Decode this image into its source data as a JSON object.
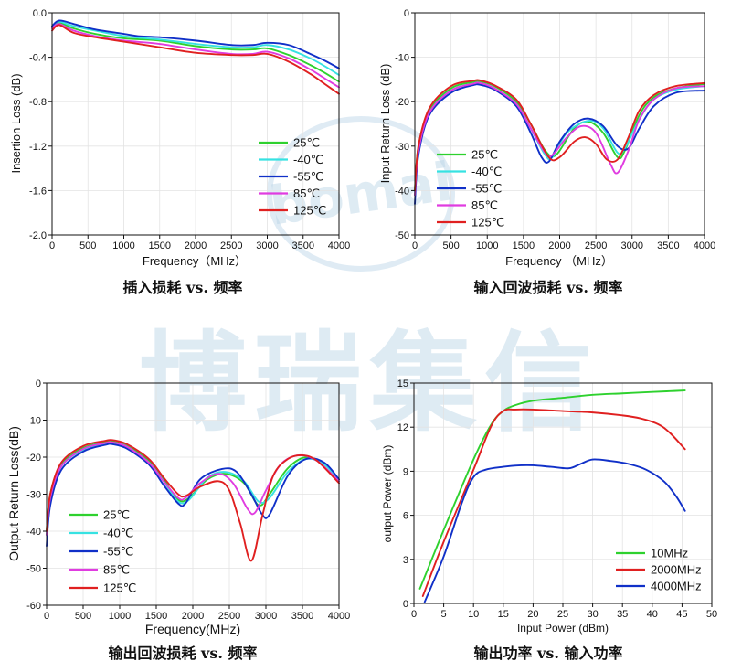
{
  "watermark": {
    "text": "博瑞集信",
    "logo_text": "bomai",
    "color": "#b8d3e6"
  },
  "colors": {
    "green": "#2ed12e",
    "cyan": "#36e2e2",
    "blue": "#1030c8",
    "magenta": "#e03ce0",
    "red": "#e02020"
  },
  "chart_data": [
    {
      "id": "insertion",
      "type": "line",
      "caption": "插入损耗 vs. 频率",
      "xlabel": "Frequency（MHz）",
      "ylabel": "Insertion Loss (dB)",
      "xlim": [
        0,
        4000
      ],
      "ylim": [
        -2.0,
        0.0
      ],
      "xticks": [
        0,
        500,
        1000,
        1500,
        2000,
        2500,
        3000,
        3500,
        4000
      ],
      "yticks": [
        0.0,
        -0.4,
        -0.8,
        -1.2,
        -1.6,
        -2.0
      ],
      "ytick_labels": [
        "0.0",
        "-0.4",
        "-0.8",
        "-1.2",
        "-1.6",
        "-2.0"
      ],
      "series": [
        {
          "name": "25℃",
          "color": "green",
          "x": [
            0,
            100,
            300,
            600,
            1000,
            1500,
            2000,
            2500,
            2800,
            3000,
            3300,
            3600,
            3800,
            4000
          ],
          "y": [
            -0.13,
            -0.09,
            -0.14,
            -0.19,
            -0.23,
            -0.25,
            -0.3,
            -0.33,
            -0.33,
            -0.32,
            -0.38,
            -0.47,
            -0.54,
            -0.62
          ]
        },
        {
          "name": "-40℃",
          "color": "cyan",
          "x": [
            0,
            100,
            300,
            600,
            1000,
            1500,
            2000,
            2500,
            2800,
            3000,
            3300,
            3600,
            3800,
            4000
          ],
          "y": [
            -0.12,
            -0.08,
            -0.12,
            -0.16,
            -0.21,
            -0.24,
            -0.28,
            -0.31,
            -0.31,
            -0.29,
            -0.33,
            -0.41,
            -0.48,
            -0.56
          ]
        },
        {
          "name": "-55℃",
          "color": "blue",
          "x": [
            0,
            100,
            300,
            600,
            1000,
            1200,
            1500,
            2000,
            2500,
            2800,
            3000,
            3300,
            3600,
            3800,
            4000
          ],
          "y": [
            -0.12,
            -0.07,
            -0.1,
            -0.15,
            -0.19,
            -0.21,
            -0.22,
            -0.25,
            -0.29,
            -0.29,
            -0.27,
            -0.29,
            -0.37,
            -0.43,
            -0.5
          ]
        },
        {
          "name": "85℃",
          "color": "magenta",
          "x": [
            0,
            100,
            300,
            600,
            1000,
            1500,
            2000,
            2500,
            2800,
            3000,
            3300,
            3600,
            3800,
            4000
          ],
          "y": [
            -0.14,
            -0.1,
            -0.16,
            -0.21,
            -0.25,
            -0.28,
            -0.33,
            -0.37,
            -0.37,
            -0.35,
            -0.41,
            -0.51,
            -0.59,
            -0.67
          ]
        },
        {
          "name": "125℃",
          "color": "red",
          "x": [
            0,
            100,
            300,
            600,
            1000,
            1500,
            2000,
            2500,
            2800,
            3000,
            3300,
            3600,
            3800,
            4000
          ],
          "y": [
            -0.16,
            -0.11,
            -0.18,
            -0.22,
            -0.26,
            -0.31,
            -0.36,
            -0.38,
            -0.38,
            -0.37,
            -0.44,
            -0.55,
            -0.64,
            -0.73
          ]
        }
      ]
    },
    {
      "id": "input_rl",
      "type": "line",
      "caption": "输入回波损耗 vs. 频率",
      "xlabel": "Frequency （MHz）",
      "ylabel": "Input Return Loss (dB)",
      "xlim": [
        0,
        4000
      ],
      "ylim": [
        -50,
        0
      ],
      "xticks": [
        0,
        500,
        1000,
        1500,
        2000,
        2500,
        3000,
        3500,
        4000
      ],
      "yticks": [
        0,
        -10,
        -20,
        -30,
        -40,
        -50
      ],
      "ytick_labels": [
        "0",
        "-10",
        "-20",
        "-30",
        "-40",
        "-50"
      ],
      "series": [
        {
          "name": "25℃",
          "color": "green",
          "x": [
            0,
            50,
            200,
            500,
            800,
            900,
            1100,
            1400,
            1600,
            1800,
            1950,
            2200,
            2400,
            2600,
            2800,
            2900,
            3100,
            3300,
            3600,
            4000
          ],
          "y": [
            -40,
            -30,
            -22,
            -17,
            -15.6,
            -15.5,
            -16.5,
            -20,
            -25,
            -31,
            -32,
            -26,
            -24.5,
            -27,
            -32.5,
            -31,
            -23,
            -19,
            -17,
            -16
          ]
        },
        {
          "name": "-40℃",
          "color": "cyan",
          "x": [
            0,
            50,
            200,
            500,
            800,
            900,
            1100,
            1400,
            1600,
            1800,
            1900,
            2100,
            2400,
            2600,
            2800,
            2900,
            3100,
            3300,
            3600,
            4000
          ],
          "y": [
            -41,
            -31,
            -22.5,
            -17.5,
            -16,
            -15.8,
            -17,
            -20.5,
            -26,
            -32,
            -32.5,
            -27,
            -24.3,
            -26,
            -31.5,
            -30.5,
            -24,
            -19.5,
            -17.3,
            -16.5
          ]
        },
        {
          "name": "-55℃",
          "color": "blue",
          "x": [
            0,
            50,
            200,
            500,
            800,
            900,
            1100,
            1400,
            1600,
            1750,
            1850,
            2000,
            2200,
            2400,
            2600,
            2800,
            2950,
            3100,
            3300,
            3600,
            4000
          ],
          "y": [
            -43,
            -32,
            -23,
            -18,
            -16.3,
            -16.2,
            -17.3,
            -21,
            -27,
            -32.5,
            -33.5,
            -29,
            -25,
            -23.8,
            -25.5,
            -30,
            -30.5,
            -26,
            -21,
            -18,
            -17.5
          ]
        },
        {
          "name": "85℃",
          "color": "magenta",
          "x": [
            0,
            50,
            200,
            500,
            800,
            900,
            1100,
            1400,
            1600,
            1800,
            1900,
            2100,
            2300,
            2500,
            2700,
            2800,
            2950,
            3100,
            3300,
            3600,
            4000
          ],
          "y": [
            -41,
            -31,
            -22.5,
            -17.5,
            -16,
            -15.8,
            -17,
            -20.5,
            -26,
            -31.5,
            -32,
            -28,
            -25.5,
            -27,
            -34,
            -36,
            -31,
            -24,
            -19.5,
            -17,
            -16.5
          ]
        },
        {
          "name": "125℃",
          "color": "red",
          "x": [
            0,
            50,
            200,
            500,
            800,
            900,
            1100,
            1400,
            1600,
            1850,
            2000,
            2200,
            2350,
            2500,
            2650,
            2800,
            2950,
            3100,
            3300,
            3600,
            4000
          ],
          "y": [
            -40,
            -30,
            -21.5,
            -16.5,
            -15.3,
            -15.2,
            -16.3,
            -19.5,
            -25,
            -32.5,
            -32.5,
            -29,
            -28,
            -29.5,
            -33,
            -33,
            -28,
            -22,
            -18.5,
            -16.5,
            -15.8
          ]
        }
      ]
    },
    {
      "id": "output_rl",
      "type": "line",
      "caption": "输出回波损耗 vs. 频率",
      "xlabel": "Frequency(MHz)",
      "ylabel": "Output Return Loss(dB)",
      "xlim": [
        0,
        4000
      ],
      "ylim": [
        -60,
        0
      ],
      "xticks": [
        0,
        500,
        1000,
        1500,
        2000,
        2500,
        3000,
        3500,
        4000
      ],
      "yticks": [
        0,
        -10,
        -20,
        -30,
        -40,
        -50,
        -60
      ],
      "ytick_labels": [
        "0",
        "-10",
        "-20",
        "-30",
        "-40",
        "-50",
        "-60"
      ],
      "series": [
        {
          "name": "25℃",
          "color": "green",
          "x": [
            0,
            50,
            200,
            500,
            800,
            900,
            1100,
            1400,
            1600,
            1800,
            1950,
            2200,
            2450,
            2700,
            2900,
            3050,
            3300,
            3550,
            3800,
            4000
          ],
          "y": [
            -40,
            -30,
            -22,
            -17.5,
            -16,
            -15.8,
            -17,
            -21,
            -26,
            -31.5,
            -31,
            -26,
            -24.5,
            -27,
            -33,
            -30,
            -23,
            -20,
            -22,
            -26
          ]
        },
        {
          "name": "-40℃",
          "color": "cyan",
          "x": [
            0,
            50,
            200,
            500,
            800,
            900,
            1100,
            1400,
            1600,
            1800,
            1950,
            2200,
            2450,
            2700,
            2900,
            3050,
            3300,
            3550,
            3800,
            4000
          ],
          "y": [
            -41,
            -31,
            -22.5,
            -18,
            -16.3,
            -16.1,
            -17.2,
            -21.5,
            -26.5,
            -32,
            -31.5,
            -25.5,
            -24,
            -26.5,
            -32,
            -31,
            -24,
            -20.5,
            -22,
            -26.5
          ]
        },
        {
          "name": "-55℃",
          "color": "blue",
          "x": [
            0,
            50,
            200,
            500,
            800,
            900,
            1100,
            1400,
            1600,
            1800,
            1900,
            2100,
            2400,
            2600,
            2800,
            2950,
            3050,
            3300,
            3550,
            3800,
            4000
          ],
          "y": [
            -44,
            -33,
            -23.5,
            -18.5,
            -16.7,
            -16.5,
            -17.7,
            -22,
            -27.5,
            -32.5,
            -32.5,
            -26,
            -23.2,
            -24,
            -30,
            -35.5,
            -35.5,
            -25,
            -20.5,
            -21.5,
            -26
          ]
        },
        {
          "name": "85℃",
          "color": "magenta",
          "x": [
            0,
            50,
            200,
            500,
            800,
            900,
            1100,
            1400,
            1600,
            1800,
            1900,
            2100,
            2350,
            2550,
            2750,
            2850,
            3000,
            3200,
            3450,
            3700,
            4000
          ],
          "y": [
            -41,
            -31,
            -22.5,
            -17.8,
            -16.2,
            -16,
            -17.2,
            -21.5,
            -26.5,
            -31,
            -31,
            -27,
            -24.5,
            -27,
            -34,
            -35,
            -29,
            -22,
            -19.5,
            -21,
            -26.5
          ]
        },
        {
          "name": "125℃",
          "color": "red",
          "x": [
            0,
            50,
            200,
            500,
            800,
            900,
            1100,
            1400,
            1600,
            1800,
            1900,
            2100,
            2350,
            2500,
            2650,
            2800,
            2950,
            3100,
            3300,
            3500,
            3700,
            4000
          ],
          "y": [
            -40,
            -30,
            -21.5,
            -17,
            -15.6,
            -15.4,
            -16.5,
            -20.5,
            -25.5,
            -30,
            -30.5,
            -28,
            -26.5,
            -29,
            -38,
            -48,
            -36,
            -25,
            -20.5,
            -19.5,
            -21,
            -27
          ]
        }
      ]
    },
    {
      "id": "power",
      "type": "line",
      "caption": "输出功率 vs. 输入功率",
      "xlabel": "Input Power (dBm)",
      "ylabel": "output Power (dBm)",
      "xlim": [
        0,
        50
      ],
      "ylim": [
        0,
        15
      ],
      "xticks": [
        0,
        5,
        10,
        15,
        20,
        25,
        30,
        35,
        40,
        45,
        50
      ],
      "yticks": [
        0,
        3,
        6,
        9,
        12,
        15
      ],
      "ytick_labels": [
        "0",
        "3",
        "6",
        "9",
        "12",
        "15"
      ],
      "series": [
        {
          "name": "10MHz",
          "color": "green",
          "x": [
            1,
            5,
            10,
            13,
            15,
            17,
            20,
            25,
            30,
            35,
            40,
            43,
            45.5
          ],
          "y": [
            1.0,
            5.0,
            9.8,
            12.2,
            13.1,
            13.5,
            13.8,
            14.0,
            14.2,
            14.3,
            14.4,
            14.45,
            14.5
          ]
        },
        {
          "name": "2000MHz",
          "color": "red",
          "x": [
            1.5,
            5,
            10,
            13,
            15,
            17,
            20,
            25,
            30,
            35,
            38,
            41,
            43,
            45.5
          ],
          "y": [
            0.5,
            4.2,
            9.1,
            12.1,
            13.1,
            13.2,
            13.2,
            13.1,
            13.0,
            12.8,
            12.6,
            12.2,
            11.6,
            10.5
          ]
        },
        {
          "name": "4000MHz",
          "color": "blue",
          "x": [
            1.8,
            5,
            8,
            10,
            12,
            15,
            18,
            20,
            23,
            26,
            28,
            30,
            33,
            36,
            39,
            42,
            44,
            45.5
          ],
          "y": [
            0.1,
            3.2,
            6.8,
            8.6,
            9.1,
            9.3,
            9.4,
            9.4,
            9.3,
            9.2,
            9.5,
            9.8,
            9.7,
            9.5,
            9.1,
            8.3,
            7.3,
            6.3
          ]
        }
      ]
    }
  ]
}
